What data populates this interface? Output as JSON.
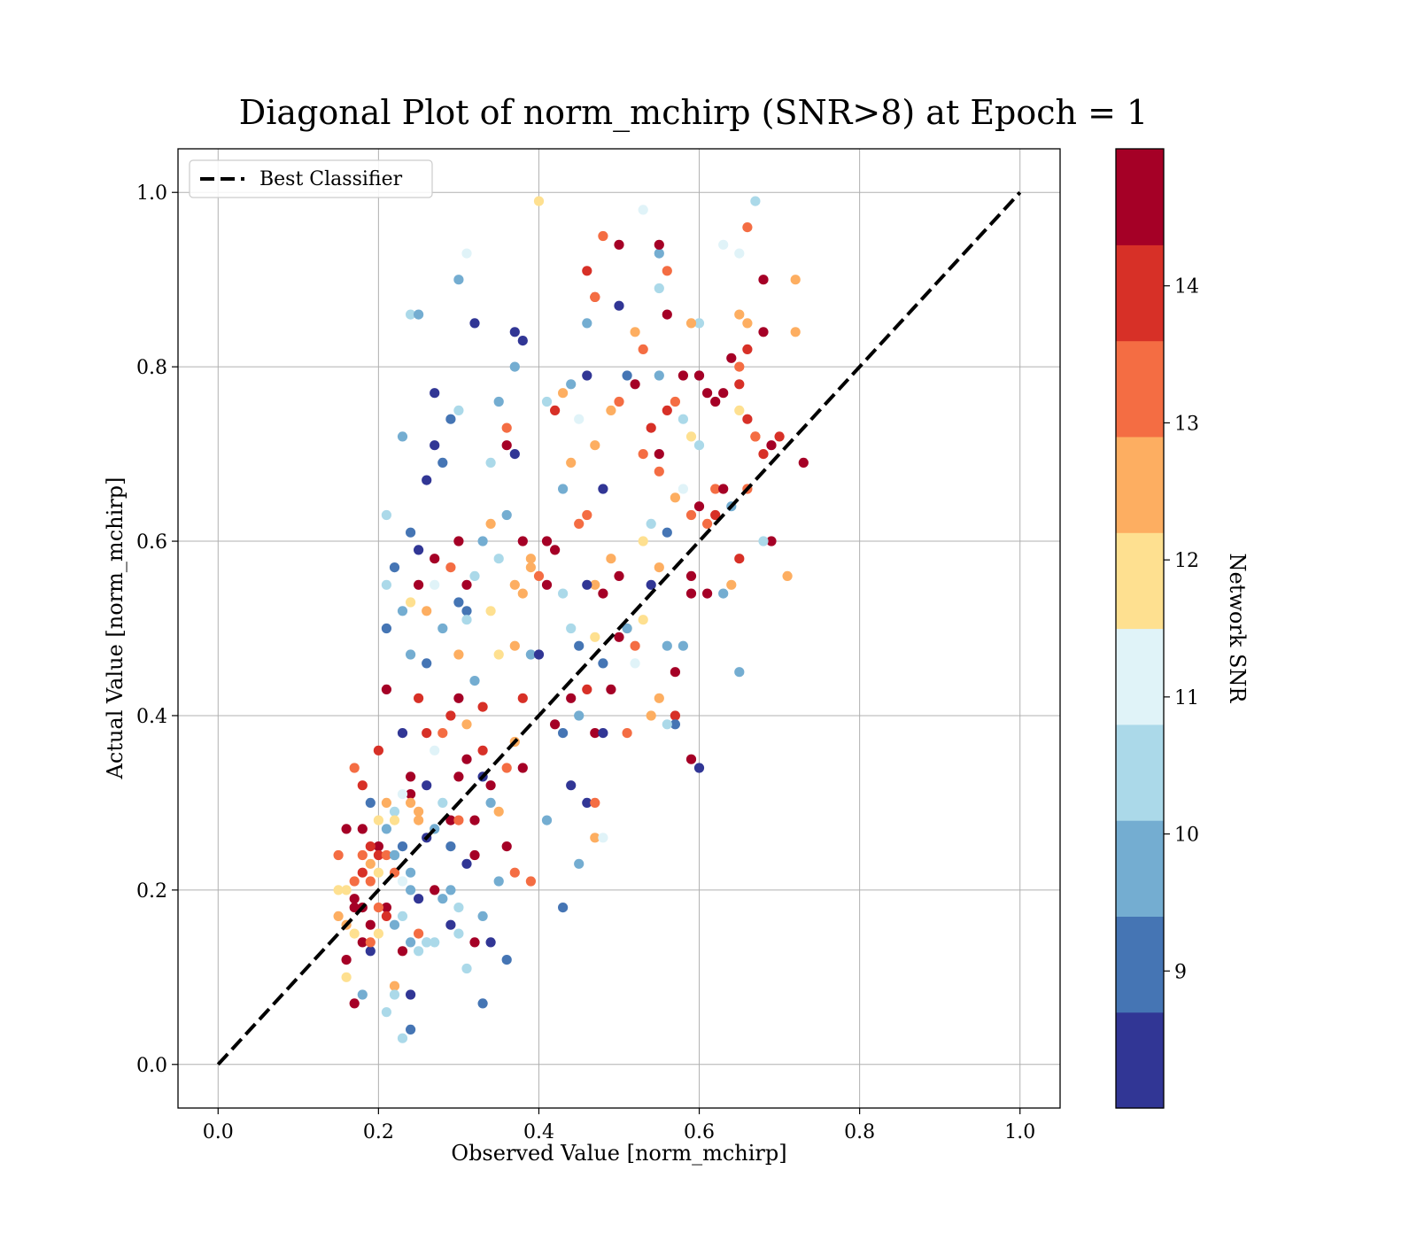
{
  "chart_data": {
    "type": "scatter",
    "title": "Diagonal Plot of norm_mchirp (SNR>8) at Epoch = 1",
    "xlabel": "Observed Value [norm_mchirp]",
    "ylabel": "Actual Value [norm_mchirp]",
    "xlim": [
      -0.05,
      1.05
    ],
    "ylim": [
      -0.05,
      1.05
    ],
    "xticks": [
      "0.0",
      "0.2",
      "0.4",
      "0.6",
      "0.8",
      "1.0"
    ],
    "yticks": [
      "0.0",
      "0.2",
      "0.4",
      "0.6",
      "0.8",
      "1.0"
    ],
    "grid": true,
    "legend": {
      "position": "top-left",
      "entries": [
        "Best Classifier"
      ]
    },
    "best_classifier_line": {
      "x": [
        0.0,
        1.0
      ],
      "y": [
        0.0,
        1.0
      ],
      "style": "dashed",
      "color": "#000000"
    },
    "colorbar": {
      "label": "Network SNR",
      "min": 8.0,
      "max": 15.0,
      "ticks": [
        "9",
        "10",
        "11",
        "12",
        "13",
        "14"
      ],
      "bins": [
        "#313695",
        "#4575b4",
        "#74add1",
        "#abd9e9",
        "#e0f3f8",
        "#fee090",
        "#fdae61",
        "#f46d43",
        "#d73027",
        "#a50026"
      ]
    },
    "points": [
      [
        0.15,
        0.24,
        13.0
      ],
      [
        0.16,
        0.27,
        14.6
      ],
      [
        0.17,
        0.19,
        14.8
      ],
      [
        0.18,
        0.14,
        14.4
      ],
      [
        0.19,
        0.21,
        13.2
      ],
      [
        0.2,
        0.25,
        14.9
      ],
      [
        0.21,
        0.18,
        14.7
      ],
      [
        0.22,
        0.22,
        13.5
      ],
      [
        0.23,
        0.13,
        14.5
      ],
      [
        0.24,
        0.2,
        9.6
      ],
      [
        0.16,
        0.12,
        14.9
      ],
      [
        0.17,
        0.34,
        13.3
      ],
      [
        0.18,
        0.32,
        14.2
      ],
      [
        0.19,
        0.3,
        9.2
      ],
      [
        0.2,
        0.36,
        13.9
      ],
      [
        0.21,
        0.43,
        14.8
      ],
      [
        0.22,
        0.29,
        10.6
      ],
      [
        0.23,
        0.38,
        8.4
      ],
      [
        0.24,
        0.33,
        14.4
      ],
      [
        0.25,
        0.42,
        13.8
      ],
      [
        0.17,
        0.07,
        14.8
      ],
      [
        0.18,
        0.08,
        9.8
      ],
      [
        0.19,
        0.13,
        8.3
      ],
      [
        0.2,
        0.18,
        13.4
      ],
      [
        0.21,
        0.06,
        10.5
      ],
      [
        0.22,
        0.09,
        12.6
      ],
      [
        0.23,
        0.03,
        10.6
      ],
      [
        0.24,
        0.04,
        9.2
      ],
      [
        0.25,
        0.15,
        12.9
      ],
      [
        0.26,
        0.14,
        10.3
      ],
      [
        0.15,
        0.17,
        12.4
      ],
      [
        0.16,
        0.1,
        11.8
      ],
      [
        0.17,
        0.15,
        12.2
      ],
      [
        0.18,
        0.24,
        13.5
      ],
      [
        0.19,
        0.16,
        14.5
      ],
      [
        0.2,
        0.22,
        12.0
      ],
      [
        0.21,
        0.27,
        9.7
      ],
      [
        0.22,
        0.24,
        9.4
      ],
      [
        0.23,
        0.25,
        8.8
      ],
      [
        0.24,
        0.31,
        14.9
      ],
      [
        0.25,
        0.28,
        12.4
      ],
      [
        0.26,
        0.26,
        8.5
      ],
      [
        0.27,
        0.2,
        14.6
      ],
      [
        0.28,
        0.3,
        10.4
      ],
      [
        0.29,
        0.25,
        9.3
      ],
      [
        0.3,
        0.33,
        14.3
      ],
      [
        0.31,
        0.23,
        8.3
      ],
      [
        0.32,
        0.28,
        14.8
      ],
      [
        0.33,
        0.36,
        13.9
      ],
      [
        0.34,
        0.3,
        9.6
      ],
      [
        0.21,
        0.5,
        9.3
      ],
      [
        0.21,
        0.55,
        10.2
      ],
      [
        0.21,
        0.63,
        10.2
      ],
      [
        0.22,
        0.57,
        9.2
      ],
      [
        0.23,
        0.52,
        9.6
      ],
      [
        0.24,
        0.47,
        9.6
      ],
      [
        0.24,
        0.61,
        9.2
      ],
      [
        0.25,
        0.59,
        8.6
      ],
      [
        0.26,
        0.46,
        8.9
      ],
      [
        0.27,
        0.58,
        14.4
      ],
      [
        0.23,
        0.72,
        9.8
      ],
      [
        0.27,
        0.77,
        8.5
      ],
      [
        0.27,
        0.71,
        8.3
      ],
      [
        0.26,
        0.67,
        8.5
      ],
      [
        0.28,
        0.69,
        8.8
      ],
      [
        0.29,
        0.74,
        9.2
      ],
      [
        0.3,
        0.75,
        10.3
      ],
      [
        0.24,
        0.86,
        10.5
      ],
      [
        0.25,
        0.86,
        9.4
      ],
      [
        0.3,
        0.9,
        9.5
      ],
      [
        0.31,
        0.93,
        11.0
      ],
      [
        0.32,
        0.85,
        8.4
      ],
      [
        0.37,
        0.84,
        8.6
      ],
      [
        0.38,
        0.83,
        8.4
      ],
      [
        0.37,
        0.8,
        9.5
      ],
      [
        0.35,
        0.76,
        9.7
      ],
      [
        0.36,
        0.71,
        14.5
      ],
      [
        0.36,
        0.73,
        13.4
      ],
      [
        0.37,
        0.7,
        8.6
      ],
      [
        0.34,
        0.69,
        10.4
      ],
      [
        0.4,
        0.99,
        11.7
      ],
      [
        0.48,
        0.95,
        13.5
      ],
      [
        0.5,
        0.94,
        14.3
      ],
      [
        0.53,
        0.98,
        11.0
      ],
      [
        0.55,
        0.93,
        9.9
      ],
      [
        0.55,
        0.94,
        14.6
      ],
      [
        0.56,
        0.91,
        13.0
      ],
      [
        0.55,
        0.89,
        10.4
      ],
      [
        0.46,
        0.91,
        14.0
      ],
      [
        0.47,
        0.88,
        14.1
      ],
      [
        0.47,
        0.88,
        13.2
      ],
      [
        0.5,
        0.87,
        8.5
      ],
      [
        0.46,
        0.85,
        10.0
      ],
      [
        0.52,
        0.84,
        12.8
      ],
      [
        0.53,
        0.82,
        13.6
      ],
      [
        0.55,
        0.79,
        10.0
      ],
      [
        0.56,
        0.86,
        14.9
      ],
      [
        0.6,
        0.85,
        10.6
      ],
      [
        0.59,
        0.85,
        12.4
      ],
      [
        0.6,
        0.79,
        9.6
      ],
      [
        0.6,
        0.79,
        14.8
      ],
      [
        0.58,
        0.79,
        14.3
      ],
      [
        0.61,
        0.77,
        14.6
      ],
      [
        0.62,
        0.76,
        14.6
      ],
      [
        0.63,
        0.77,
        14.9
      ],
      [
        0.63,
        0.94,
        11.0
      ],
      [
        0.65,
        0.93,
        11.1
      ],
      [
        0.66,
        0.96,
        13.1
      ],
      [
        0.67,
        0.99,
        10.3
      ],
      [
        0.68,
        0.9,
        14.7
      ],
      [
        0.68,
        0.84,
        14.5
      ],
      [
        0.65,
        0.86,
        12.5
      ],
      [
        0.66,
        0.85,
        12.3
      ],
      [
        0.64,
        0.81,
        14.8
      ],
      [
        0.65,
        0.8,
        13.3
      ],
      [
        0.66,
        0.82,
        13.7
      ],
      [
        0.65,
        0.78,
        13.7
      ],
      [
        0.67,
        0.72,
        13.3
      ],
      [
        0.68,
        0.7,
        14.0
      ],
      [
        0.69,
        0.71,
        14.9
      ],
      [
        0.7,
        0.72,
        14.2
      ],
      [
        0.72,
        0.84,
        12.5
      ],
      [
        0.72,
        0.9,
        12.6
      ],
      [
        0.73,
        0.69,
        14.8
      ],
      [
        0.69,
        0.6,
        14.9
      ],
      [
        0.71,
        0.56,
        12.7
      ],
      [
        0.68,
        0.6,
        10.4
      ],
      [
        0.67,
        0.72,
        13.5
      ],
      [
        0.66,
        0.74,
        13.9
      ],
      [
        0.65,
        0.75,
        11.8
      ],
      [
        0.42,
        0.75,
        13.8
      ],
      [
        0.41,
        0.76,
        10.4
      ],
      [
        0.43,
        0.77,
        12.8
      ],
      [
        0.44,
        0.78,
        9.8
      ],
      [
        0.45,
        0.74,
        11.4
      ],
      [
        0.46,
        0.79,
        8.7
      ],
      [
        0.47,
        0.71,
        12.6
      ],
      [
        0.48,
        0.66,
        8.5
      ],
      [
        0.49,
        0.75,
        12.6
      ],
      [
        0.5,
        0.76,
        13.4
      ],
      [
        0.51,
        0.79,
        8.8
      ],
      [
        0.52,
        0.78,
        14.9
      ],
      [
        0.53,
        0.7,
        13.0
      ],
      [
        0.54,
        0.73,
        13.7
      ],
      [
        0.55,
        0.7,
        14.9
      ],
      [
        0.56,
        0.75,
        14.2
      ],
      [
        0.57,
        0.76,
        13.3
      ],
      [
        0.58,
        0.74,
        10.5
      ],
      [
        0.59,
        0.72,
        12.2
      ],
      [
        0.6,
        0.71,
        10.6
      ],
      [
        0.43,
        0.66,
        9.4
      ],
      [
        0.44,
        0.69,
        12.5
      ],
      [
        0.45,
        0.62,
        13.2
      ],
      [
        0.46,
        0.63,
        13.5
      ],
      [
        0.47,
        0.55,
        12.4
      ],
      [
        0.48,
        0.54,
        14.8
      ],
      [
        0.49,
        0.58,
        12.4
      ],
      [
        0.5,
        0.56,
        14.8
      ],
      [
        0.51,
        0.5,
        12.2
      ],
      [
        0.52,
        0.48,
        13.0
      ],
      [
        0.53,
        0.6,
        12.0
      ],
      [
        0.54,
        0.62,
        10.3
      ],
      [
        0.55,
        0.68,
        13.0
      ],
      [
        0.56,
        0.61,
        9.3
      ],
      [
        0.57,
        0.65,
        12.5
      ],
      [
        0.58,
        0.66,
        10.9
      ],
      [
        0.59,
        0.63,
        12.9
      ],
      [
        0.6,
        0.64,
        14.8
      ],
      [
        0.61,
        0.62,
        13.6
      ],
      [
        0.62,
        0.66,
        13.3
      ],
      [
        0.38,
        0.54,
        12.8
      ],
      [
        0.39,
        0.58,
        12.4
      ],
      [
        0.4,
        0.56,
        13.0
      ],
      [
        0.41,
        0.6,
        14.3
      ],
      [
        0.42,
        0.59,
        14.5
      ],
      [
        0.43,
        0.54,
        10.5
      ],
      [
        0.44,
        0.5,
        10.7
      ],
      [
        0.45,
        0.48,
        9.3
      ],
      [
        0.46,
        0.55,
        8.3
      ],
      [
        0.47,
        0.49,
        12.2
      ],
      [
        0.48,
        0.46,
        9.2
      ],
      [
        0.49,
        0.43,
        14.8
      ],
      [
        0.5,
        0.49,
        14.7
      ],
      [
        0.51,
        0.5,
        9.4
      ],
      [
        0.52,
        0.46,
        10.9
      ],
      [
        0.53,
        0.51,
        12.2
      ],
      [
        0.54,
        0.55,
        8.6
      ],
      [
        0.55,
        0.57,
        12.7
      ],
      [
        0.56,
        0.48,
        10.1
      ],
      [
        0.57,
        0.45,
        14.8
      ],
      [
        0.37,
        0.48,
        12.6
      ],
      [
        0.38,
        0.42,
        14.0
      ],
      [
        0.39,
        0.47,
        9.7
      ],
      [
        0.4,
        0.47,
        8.5
      ],
      [
        0.41,
        0.55,
        14.8
      ],
      [
        0.42,
        0.39,
        14.8
      ],
      [
        0.43,
        0.38,
        8.9
      ],
      [
        0.44,
        0.42,
        14.8
      ],
      [
        0.45,
        0.4,
        9.8
      ],
      [
        0.46,
        0.43,
        13.7
      ],
      [
        0.47,
        0.38,
        14.9
      ],
      [
        0.48,
        0.38,
        8.7
      ],
      [
        0.46,
        0.3,
        8.7
      ],
      [
        0.47,
        0.3,
        13.3
      ],
      [
        0.44,
        0.32,
        8.3
      ],
      [
        0.47,
        0.26,
        12.6
      ],
      [
        0.45,
        0.23,
        9.8
      ],
      [
        0.48,
        0.26,
        11.0
      ],
      [
        0.41,
        0.28,
        9.4
      ],
      [
        0.43,
        0.18,
        9.2
      ],
      [
        0.39,
        0.21,
        13.0
      ],
      [
        0.37,
        0.22,
        13.1
      ],
      [
        0.35,
        0.21,
        9.5
      ],
      [
        0.36,
        0.25,
        14.9
      ],
      [
        0.36,
        0.12,
        9.2
      ],
      [
        0.34,
        0.14,
        8.4
      ],
      [
        0.33,
        0.17,
        9.5
      ],
      [
        0.31,
        0.11,
        10.4
      ],
      [
        0.32,
        0.14,
        14.8
      ],
      [
        0.33,
        0.07,
        9.2
      ],
      [
        0.29,
        0.16,
        8.3
      ],
      [
        0.3,
        0.15,
        10.4
      ],
      [
        0.3,
        0.18,
        10.5
      ],
      [
        0.29,
        0.2,
        9.9
      ],
      [
        0.28,
        0.19,
        9.7
      ],
      [
        0.27,
        0.14,
        10.4
      ],
      [
        0.26,
        0.14,
        10.5
      ],
      [
        0.25,
        0.19,
        8.5
      ],
      [
        0.24,
        0.08,
        8.5
      ],
      [
        0.22,
        0.08,
        10.5
      ],
      [
        0.29,
        0.28,
        14.5
      ],
      [
        0.3,
        0.28,
        13.4
      ],
      [
        0.31,
        0.35,
        14.4
      ],
      [
        0.32,
        0.24,
        14.8
      ],
      [
        0.33,
        0.33,
        8.6
      ],
      [
        0.34,
        0.32,
        14.7
      ],
      [
        0.35,
        0.29,
        12.6
      ],
      [
        0.36,
        0.34,
        13.5
      ],
      [
        0.37,
        0.37,
        12.8
      ],
      [
        0.38,
        0.34,
        14.5
      ],
      [
        0.26,
        0.38,
        13.8
      ],
      [
        0.27,
        0.36,
        11.3
      ],
      [
        0.28,
        0.38,
        13.2
      ],
      [
        0.29,
        0.4,
        14.0
      ],
      [
        0.3,
        0.42,
        14.8
      ],
      [
        0.31,
        0.39,
        12.8
      ],
      [
        0.32,
        0.44,
        9.6
      ],
      [
        0.33,
        0.41,
        14.1
      ],
      [
        0.34,
        0.52,
        11.8
      ],
      [
        0.35,
        0.47,
        12.1
      ],
      [
        0.3,
        0.47,
        12.6
      ],
      [
        0.31,
        0.52,
        9.3
      ],
      [
        0.32,
        0.56,
        10.5
      ],
      [
        0.33,
        0.6,
        9.6
      ],
      [
        0.34,
        0.62,
        12.4
      ],
      [
        0.35,
        0.58,
        10.7
      ],
      [
        0.36,
        0.63,
        9.4
      ],
      [
        0.37,
        0.55,
        12.6
      ],
      [
        0.38,
        0.6,
        14.3
      ],
      [
        0.39,
        0.57,
        12.6
      ],
      [
        0.3,
        0.6,
        14.9
      ],
      [
        0.31,
        0.55,
        14.3
      ],
      [
        0.31,
        0.51,
        10.7
      ],
      [
        0.3,
        0.53,
        9.3
      ],
      [
        0.29,
        0.57,
        13.2
      ],
      [
        0.28,
        0.5,
        9.4
      ],
      [
        0.27,
        0.55,
        11.3
      ],
      [
        0.26,
        0.52,
        12.5
      ],
      [
        0.25,
        0.55,
        14.4
      ],
      [
        0.24,
        0.53,
        11.5
      ],
      [
        0.15,
        0.2,
        12.2
      ],
      [
        0.16,
        0.2,
        11.7
      ],
      [
        0.17,
        0.21,
        13.4
      ],
      [
        0.18,
        0.22,
        13.9
      ],
      [
        0.19,
        0.23,
        12.5
      ],
      [
        0.2,
        0.24,
        14.0
      ],
      [
        0.21,
        0.24,
        13.6
      ],
      [
        0.22,
        0.24,
        10.0
      ],
      [
        0.23,
        0.21,
        11.3
      ],
      [
        0.24,
        0.22,
        9.5
      ],
      [
        0.16,
        0.16,
        12.8
      ],
      [
        0.17,
        0.18,
        14.9
      ],
      [
        0.18,
        0.18,
        14.3
      ],
      [
        0.19,
        0.14,
        13.1
      ],
      [
        0.2,
        0.15,
        12.1
      ],
      [
        0.21,
        0.17,
        14.1
      ],
      [
        0.22,
        0.16,
        9.5
      ],
      [
        0.23,
        0.17,
        10.2
      ],
      [
        0.24,
        0.14,
        9.6
      ],
      [
        0.25,
        0.13,
        10.5
      ],
      [
        0.18,
        0.27,
        14.8
      ],
      [
        0.19,
        0.25,
        13.8
      ],
      [
        0.2,
        0.28,
        11.8
      ],
      [
        0.21,
        0.3,
        12.3
      ],
      [
        0.22,
        0.28,
        12.0
      ],
      [
        0.23,
        0.31,
        11.3
      ],
      [
        0.24,
        0.3,
        12.4
      ],
      [
        0.25,
        0.29,
        12.6
      ],
      [
        0.26,
        0.32,
        8.5
      ],
      [
        0.27,
        0.27,
        10.0
      ],
      [
        0.57,
        0.4,
        14.2
      ],
      [
        0.57,
        0.39,
        9.2
      ],
      [
        0.56,
        0.39,
        10.3
      ],
      [
        0.54,
        0.4,
        12.5
      ],
      [
        0.55,
        0.42,
        12.4
      ],
      [
        0.51,
        0.38,
        13.6
      ],
      [
        0.59,
        0.35,
        14.4
      ],
      [
        0.6,
        0.34,
        8.5
      ],
      [
        0.65,
        0.45,
        9.7
      ],
      [
        0.63,
        0.54,
        9.6
      ],
      [
        0.64,
        0.55,
        12.6
      ],
      [
        0.65,
        0.58,
        14.1
      ],
      [
        0.66,
        0.66,
        13.4
      ],
      [
        0.64,
        0.64,
        10.0
      ],
      [
        0.63,
        0.66,
        14.3
      ],
      [
        0.62,
        0.63,
        13.9
      ],
      [
        0.61,
        0.54,
        14.9
      ],
      [
        0.59,
        0.56,
        14.5
      ],
      [
        0.59,
        0.54,
        14.3
      ],
      [
        0.58,
        0.48,
        9.6
      ]
    ]
  }
}
